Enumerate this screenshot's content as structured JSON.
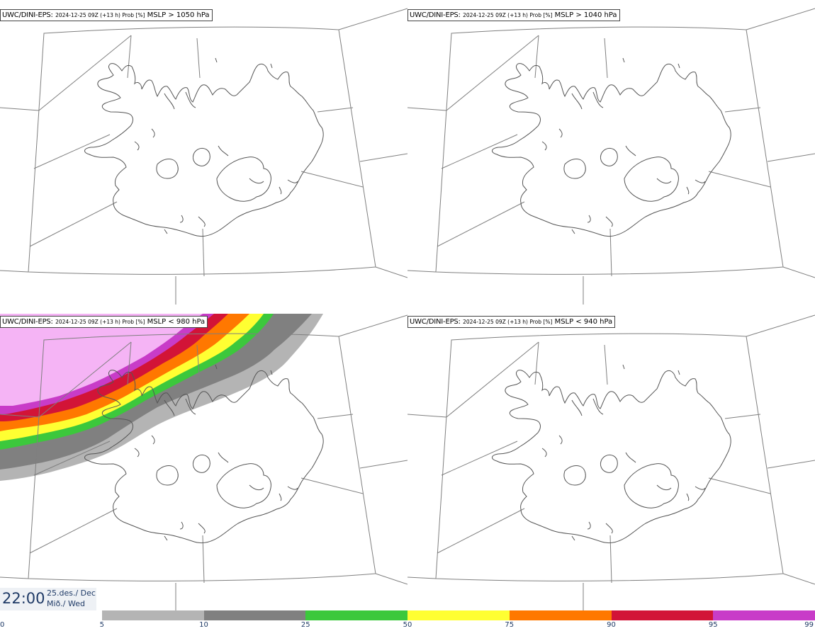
{
  "panels": [
    {
      "model": "UWC/DINI-EPS",
      "sep": ":",
      "meta": "2024-12-25 09Z (+13 h) Prob [%]",
      "field": "MSLP > 1050 hPa"
    },
    {
      "model": "UWC/DINI-EPS",
      "sep": ":",
      "meta": "2024-12-25 09Z (+13 h) Prob [%]",
      "field": "MSLP > 1040 hPa"
    },
    {
      "model": "UWC/DINI-EPS",
      "sep": ":",
      "meta": "2024-12-25 09Z (+13 h) Prob [%]",
      "field": "MSLP < 980 hPa"
    },
    {
      "model": "UWC/DINI-EPS",
      "sep": ":",
      "meta": "2024-12-25 09Z (+13 h) Prob [%]",
      "field": "MSLP < 940 hPa"
    }
  ],
  "time": {
    "clock": "22:00",
    "date_line1": "25.des./ Dec",
    "date_line2": "Mið./ Wed"
  },
  "colorbar": {
    "ticks": [
      "0",
      "5",
      "10",
      "25",
      "50",
      "75",
      "90",
      "95",
      "99"
    ],
    "colors": [
      "#ffffff",
      "#b4b4b4",
      "#808080",
      "#3cc83c",
      "#ffff32",
      "#ff7800",
      "#d21437",
      "#c83cc8",
      "#f5b4f5"
    ]
  },
  "colors": {
    "coast": "#555555",
    "grid": "#7f7f7f",
    "band_5": "#b4b4b4",
    "band_10": "#808080",
    "band_25": "#3cc83c",
    "band_50": "#ffff32",
    "band_75": "#ff7800",
    "band_90": "#d21437",
    "band_95": "#c83cc8",
    "band_99": "#f5b4f5"
  }
}
